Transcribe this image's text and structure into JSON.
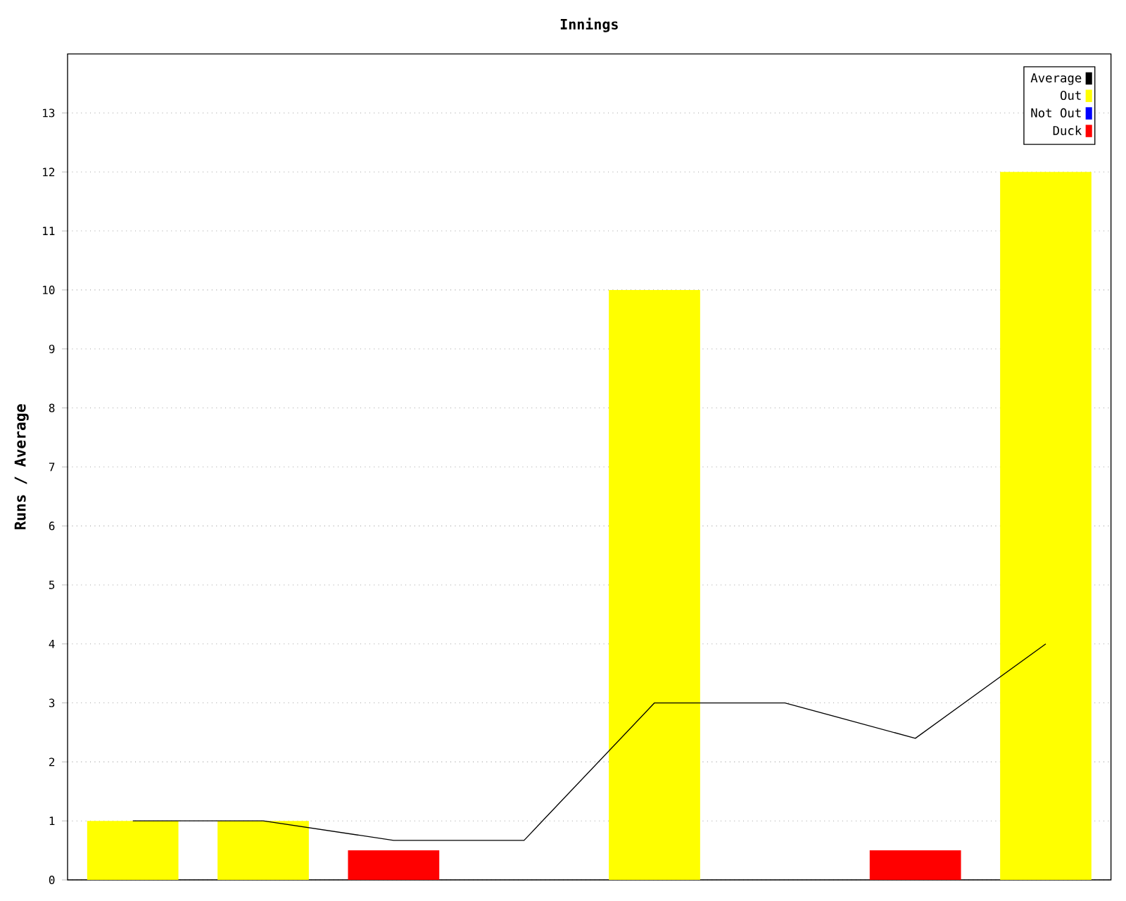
{
  "chart_data": {
    "type": "bar",
    "title": "Innings",
    "ylabel": "Runs / Average",
    "categories": [
      null,
      null,
      null,
      null,
      null,
      null,
      null,
      null
    ],
    "series": [
      {
        "name": "Average",
        "type": "line",
        "color": "#000000",
        "values": [
          1,
          1,
          0.67,
          0.67,
          3,
          3,
          2.4,
          4
        ]
      },
      {
        "name": "Out",
        "color": "#ffff00",
        "values": [
          1,
          1,
          null,
          null,
          10,
          null,
          null,
          12
        ]
      },
      {
        "name": "Not Out",
        "color": "#0000ff",
        "values": [
          null,
          null,
          null,
          null,
          null,
          null,
          null,
          null
        ]
      },
      {
        "name": "Duck",
        "color": "#ff0000",
        "values": [
          null,
          null,
          0.5,
          null,
          null,
          null,
          0.5,
          null
        ]
      }
    ],
    "ylim": [
      0,
      14
    ],
    "yticks": [
      0,
      1,
      2,
      3,
      4,
      5,
      6,
      7,
      8,
      9,
      10,
      11,
      12,
      13
    ],
    "grid": "y",
    "legend": "top right",
    "tick_labels": "y",
    "marker": "none"
  }
}
